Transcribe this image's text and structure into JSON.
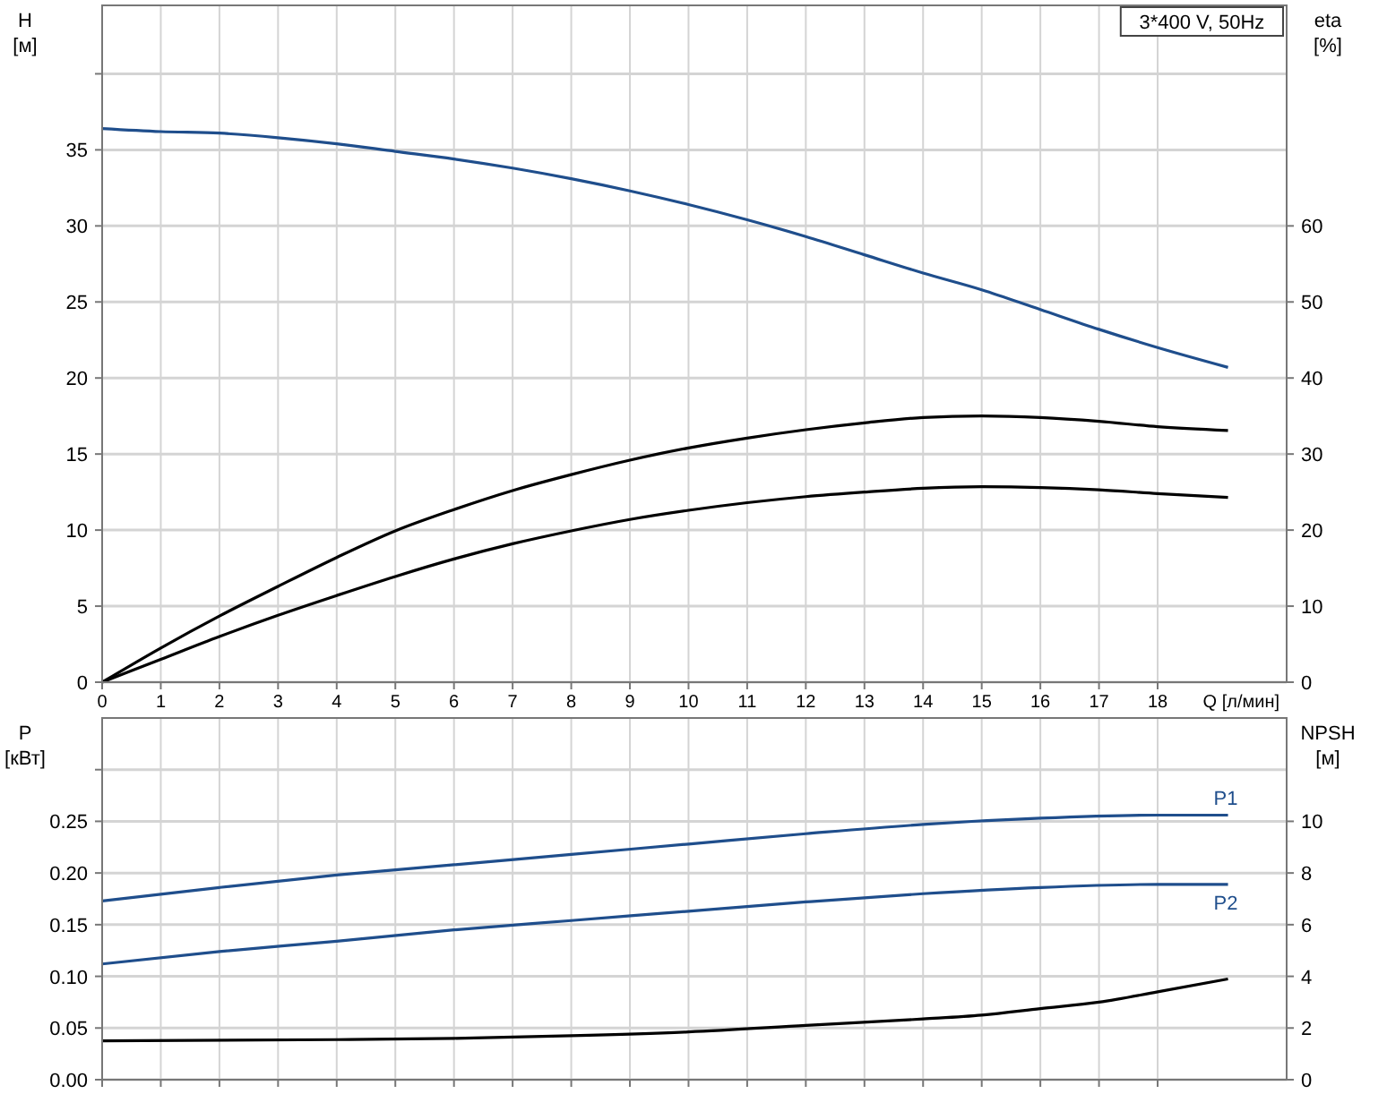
{
  "chart_data": [
    {
      "type": "line",
      "ylabel": "H [м]",
      "y2label": "eta [%]",
      "xlabel": "Q [л/мин]",
      "annotations": [
        "3*400 V, 50Hz"
      ],
      "xlim": [
        0,
        20.2
      ],
      "xticks": [
        0,
        1,
        2,
        3,
        4,
        5,
        6,
        7,
        8,
        9,
        10,
        11,
        12,
        13,
        14,
        15,
        16,
        17,
        18
      ],
      "ylim": [
        0,
        44.5
      ],
      "yticks": [
        0,
        5,
        10,
        15,
        20,
        25,
        30,
        35,
        {
          "value": 40,
          "label": null
        }
      ],
      "y2lim": [
        0,
        89
      ],
      "y2ticks": [
        0,
        10,
        20,
        30,
        40,
        50,
        60
      ],
      "grid": true,
      "series": [
        {
          "color": "#1f4e8c",
          "x": [
            0,
            1,
            2,
            3,
            4,
            5,
            6,
            7,
            8,
            9,
            10,
            11,
            12,
            13,
            14,
            15,
            16,
            17,
            18,
            19.2
          ],
          "values": [
            36.4,
            36.2,
            36.1,
            35.8,
            35.4,
            34.9,
            34.4,
            33.8,
            33.1,
            32.3,
            31.4,
            30.4,
            29.3,
            28.1,
            26.9,
            25.8,
            24.5,
            23.2,
            22.0,
            20.7
          ]
        },
        {
          "color": "#000000",
          "axis": "y2",
          "x": [
            0,
            1,
            2,
            3,
            4,
            5,
            6,
            7,
            8,
            9,
            10,
            11,
            12,
            13,
            14,
            15,
            16,
            17,
            18,
            19.2
          ],
          "values": [
            0,
            4.5,
            8.7,
            12.6,
            16.4,
            19.9,
            22.7,
            25.2,
            27.3,
            29.2,
            30.8,
            32.1,
            33.2,
            34.1,
            34.8,
            35.0,
            34.8,
            34.3,
            33.6,
            33.1
          ]
        },
        {
          "color": "#000000",
          "axis": "y2",
          "x": [
            0,
            1,
            2,
            3,
            4,
            5,
            6,
            7,
            8,
            9,
            10,
            11,
            12,
            13,
            14,
            15,
            16,
            17,
            18,
            19.2
          ],
          "values": [
            0,
            3.0,
            6.0,
            8.8,
            11.4,
            13.9,
            16.2,
            18.2,
            19.9,
            21.4,
            22.6,
            23.6,
            24.4,
            25.0,
            25.5,
            25.7,
            25.6,
            25.3,
            24.8,
            24.3
          ]
        }
      ]
    },
    {
      "type": "line",
      "ylabel": "P [кВт]",
      "y2label": "NPSH [м]",
      "tick_labels": "y",
      "xlim": [
        0,
        20.2
      ],
      "xticks": [
        0,
        1,
        2,
        3,
        4,
        5,
        6,
        7,
        8,
        9,
        10,
        11,
        12,
        13,
        14,
        15,
        16,
        17,
        18
      ],
      "ylim": [
        0,
        0.35
      ],
      "yticks": [
        {
          "value": 0,
          "label": "0.00"
        },
        {
          "value": 0.05,
          "label": "0.05"
        },
        {
          "value": 0.1,
          "label": "0.10"
        },
        {
          "value": 0.15,
          "label": "0.15"
        },
        {
          "value": 0.2,
          "label": "0.20"
        },
        {
          "value": 0.25,
          "label": "0.25"
        },
        {
          "value": 0.3,
          "label": null
        }
      ],
      "y2lim": [
        0,
        14
      ],
      "y2ticks": [
        0,
        2,
        4,
        6,
        8,
        10
      ],
      "grid": true,
      "series": [
        {
          "name": "P1",
          "color": "#1f4e8c",
          "x": [
            0,
            2,
            4,
            6,
            8,
            10,
            12,
            14,
            16,
            18,
            19.2
          ],
          "values": [
            0.173,
            0.186,
            0.198,
            0.208,
            0.218,
            0.228,
            0.238,
            0.247,
            0.253,
            0.256,
            0.256
          ]
        },
        {
          "name": "P2",
          "color": "#1f4e8c",
          "x": [
            0,
            2,
            4,
            6,
            8,
            10,
            12,
            14,
            16,
            18,
            19.2
          ],
          "values": [
            0.112,
            0.124,
            0.134,
            0.145,
            0.154,
            0.163,
            0.172,
            0.18,
            0.186,
            0.189,
            0.189
          ]
        },
        {
          "color": "#000000",
          "axis": "y2",
          "x": [
            0,
            4,
            6,
            8,
            10,
            12,
            14,
            15,
            16,
            17,
            18,
            19.2
          ],
          "values": [
            1.5,
            1.55,
            1.6,
            1.7,
            1.85,
            2.1,
            2.35,
            2.5,
            2.75,
            3.0,
            3.4,
            3.9
          ]
        }
      ]
    }
  ]
}
